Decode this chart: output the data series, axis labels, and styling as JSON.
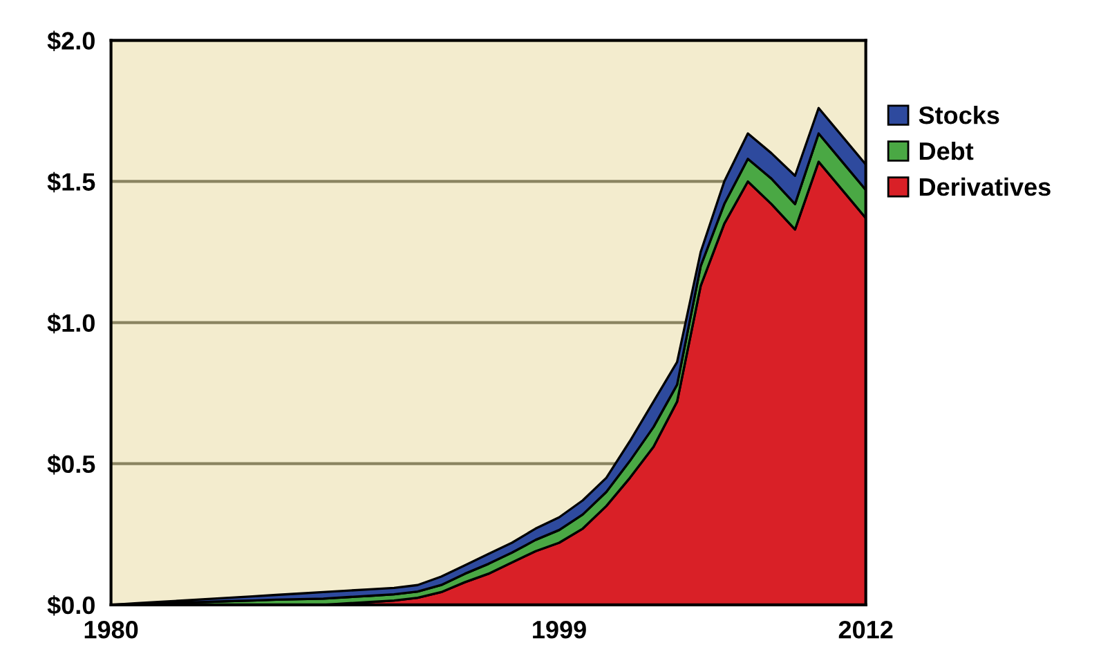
{
  "chart_data": {
    "type": "area",
    "stacked": true,
    "x": [
      1980,
      1981,
      1982,
      1983,
      1984,
      1985,
      1986,
      1987,
      1988,
      1989,
      1990,
      1991,
      1992,
      1993,
      1994,
      1995,
      1996,
      1997,
      1998,
      1999,
      2000,
      2001,
      2002,
      2003,
      2004,
      2005,
      2006,
      2007,
      2008,
      2009,
      2010,
      2011,
      2012
    ],
    "series": [
      {
        "name": "Derivatives",
        "color": "#d92027",
        "values": [
          0,
          0,
          0,
          0,
          0,
          0,
          0,
          0,
          0,
          0,
          0.005,
          0.01,
          0.015,
          0.025,
          0.045,
          0.08,
          0.11,
          0.15,
          0.19,
          0.22,
          0.27,
          0.35,
          0.45,
          0.56,
          0.72,
          1.13,
          1.35,
          1.5,
          1.42,
          1.33,
          1.57,
          1.47,
          1.37
        ]
      },
      {
        "name": "Debt",
        "color": "#4aa844",
        "values": [
          0,
          0.003,
          0.005,
          0.008,
          0.01,
          0.013,
          0.015,
          0.018,
          0.02,
          0.022,
          0.022,
          0.022,
          0.022,
          0.022,
          0.025,
          0.03,
          0.035,
          0.035,
          0.04,
          0.045,
          0.05,
          0.05,
          0.06,
          0.07,
          0.06,
          0.07,
          0.07,
          0.08,
          0.09,
          0.09,
          0.1,
          0.1,
          0.1
        ]
      },
      {
        "name": "Stocks",
        "color": "#2e4a9e",
        "values": [
          0,
          0.002,
          0.005,
          0.007,
          0.01,
          0.012,
          0.015,
          0.017,
          0.02,
          0.023,
          0.023,
          0.023,
          0.023,
          0.023,
          0.03,
          0.03,
          0.035,
          0.035,
          0.04,
          0.045,
          0.05,
          0.05,
          0.07,
          0.09,
          0.08,
          0.05,
          0.08,
          0.09,
          0.09,
          0.1,
          0.09,
          0.09,
          0.09
        ]
      }
    ],
    "xlim": [
      1980,
      2012
    ],
    "xticks": [
      1980,
      1999,
      2012
    ],
    "ylim": [
      0,
      2.0
    ],
    "yticks": [
      {
        "value": 0,
        "label": "$0.0"
      },
      {
        "value": 0.5,
        "label": "$0.5"
      },
      {
        "value": 1.0,
        "label": "$1.0"
      },
      {
        "value": 1.5,
        "label": "$1.5"
      },
      {
        "value": 2.0,
        "label": "$2.0"
      }
    ],
    "grid": "y",
    "legend": "right"
  }
}
